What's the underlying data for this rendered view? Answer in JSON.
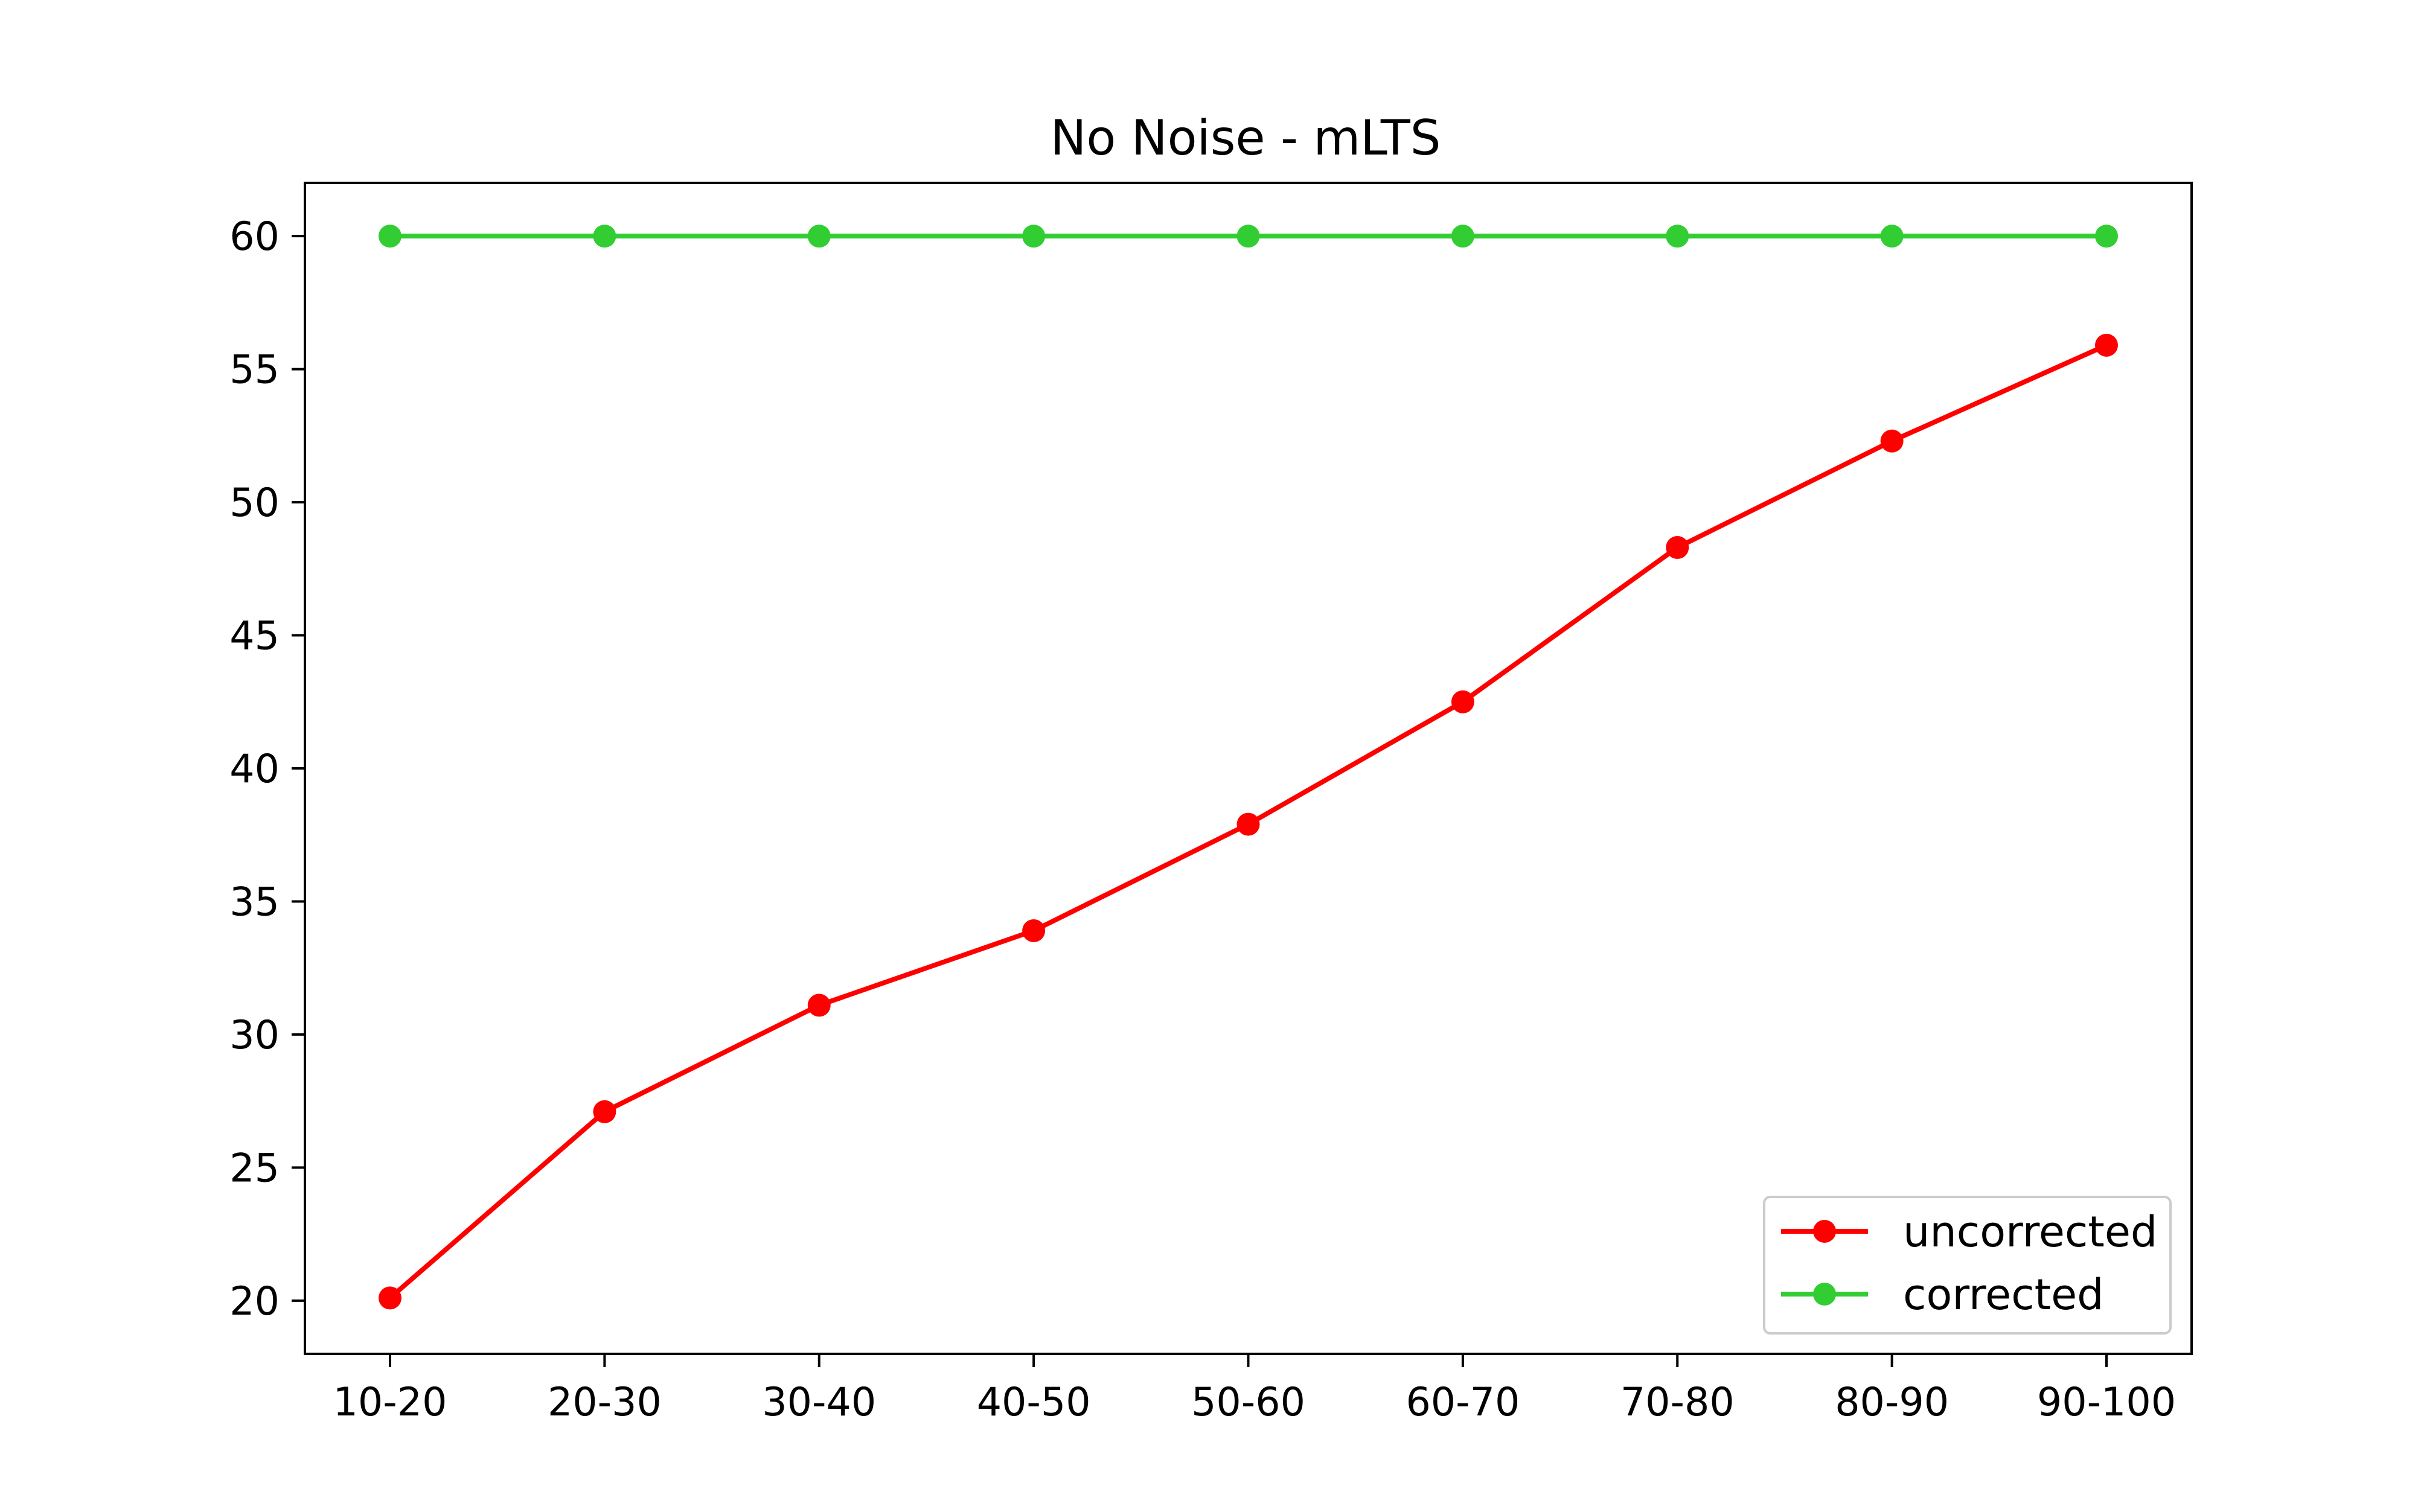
{
  "chart_data": {
    "type": "line",
    "title": "No Noise - mLTS",
    "xlabel": "",
    "ylabel": "",
    "categories": [
      "10-20",
      "20-30",
      "30-40",
      "40-50",
      "50-60",
      "60-70",
      "70-80",
      "80-90",
      "90-100"
    ],
    "series": [
      {
        "name": "uncorrected",
        "color": "#ff0000",
        "marker": "circle",
        "values": [
          20.1,
          27.1,
          31.1,
          33.9,
          37.9,
          42.5,
          48.3,
          52.3,
          55.9
        ]
      },
      {
        "name": "corrected",
        "color": "#32cd32",
        "marker": "circle",
        "values": [
          60,
          60,
          60,
          60,
          60,
          60,
          60,
          60,
          60
        ]
      }
    ],
    "ylim": [
      18.0,
      62.0
    ],
    "yticks": [
      20,
      25,
      30,
      35,
      40,
      45,
      50,
      55,
      60
    ],
    "grid": false,
    "legend_position": "lower-right"
  }
}
